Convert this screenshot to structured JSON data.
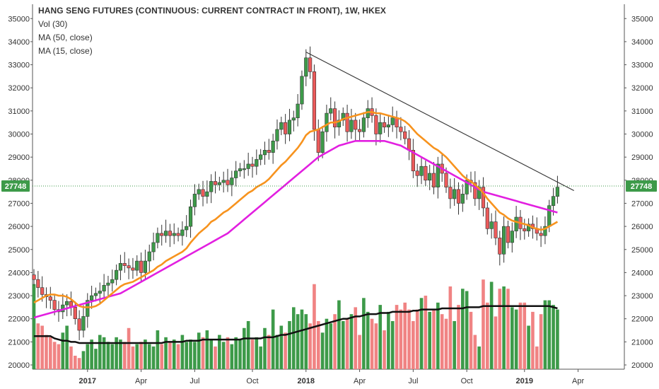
{
  "header": {
    "title": "HANG SENG FUTURES (CONTINUOUS: CURRENT CONTRACT IN FRONT), 1W, HKEX",
    "indicators": [
      "Vol (30)",
      "MA (50, close)",
      "MA (15, close)"
    ]
  },
  "colors": {
    "up": "#3d9a49",
    "down": "#ec5a5a",
    "up_volume": "#3d9a49",
    "down_volume": "#f08383",
    "ma15": "#f7931e",
    "ma50": "#e21fe0",
    "vol_ma": "#111111",
    "trendline": "#333333",
    "price_marker": "#3d9a49",
    "axis_text": "#333333"
  },
  "chart_data": {
    "type": "candlestick",
    "interval": "1W",
    "y_ticks": [
      20000,
      21000,
      22000,
      23000,
      24000,
      25000,
      26000,
      27000,
      28000,
      29000,
      30000,
      31000,
      32000,
      33000,
      34000,
      35000
    ],
    "x_ticks": [
      "2017",
      "Apr",
      "Jul",
      "Oct",
      "2018",
      "Apr",
      "Jul",
      "Oct",
      "2019",
      "Apr"
    ],
    "ylim": [
      19700,
      35400
    ],
    "last_price": "27748",
    "grid": false,
    "closes": [
      23700,
      23350,
      23050,
      22950,
      22800,
      22400,
      22300,
      22600,
      22750,
      22500,
      22000,
      21500,
      22100,
      22800,
      23000,
      23100,
      23200,
      23450,
      23550,
      23700,
      24100,
      24400,
      24300,
      24200,
      24100,
      24500,
      24000,
      24500,
      24900,
      25300,
      25700,
      25600,
      25800,
      25600,
      25700,
      25600,
      25850,
      26000,
      26850,
      27400,
      27600,
      27300,
      27500,
      27950,
      27800,
      27900,
      28000,
      27800,
      28100,
      28400,
      28500,
      28500,
      28700,
      28600,
      28900,
      29100,
      29300,
      29200,
      29700,
      30200,
      30500,
      30000,
      30600,
      30700,
      31300,
      32500,
      33300,
      32700,
      30200,
      29200,
      30100,
      30900,
      31100,
      30300,
      30600,
      30900,
      30100,
      30600,
      30200,
      30100,
      30700,
      31100,
      30800,
      30000,
      30500,
      30300,
      30400,
      30700,
      30300,
      30100,
      29800,
      29300,
      28400,
      28200,
      28600,
      28000,
      28300,
      27700,
      28700,
      28300,
      27700,
      27200,
      27600,
      27000,
      27400,
      28000,
      27900,
      27200,
      27700,
      26800,
      25900,
      26200,
      25500,
      24800,
      26000,
      25300,
      25800,
      26400,
      25900,
      25800,
      26100,
      25900,
      25700,
      25600,
      26000,
      26900,
      27300,
      27700
    ],
    "ma15": [
      22700,
      22800,
      22900,
      23000,
      23050,
      23050,
      23000,
      23000,
      22950,
      22850,
      22700,
      22550,
      22500,
      22500,
      22500,
      22550,
      22650,
      22800,
      22950,
      23100,
      23250,
      23400,
      23500,
      23550,
      23600,
      23700,
      23800,
      23900,
      24000,
      24100,
      24250,
      24350,
      24500,
      24600,
      24700,
      24800,
      24900,
      25050,
      25300,
      25500,
      25700,
      25850,
      26000,
      26200,
      26300,
      26450,
      26600,
      26700,
      26850,
      27000,
      27150,
      27300,
      27450,
      27550,
      27700,
      27800,
      27900,
      28050,
      28250,
      28450,
      28650,
      28800,
      29000,
      29200,
      29400,
      29650,
      29950,
      30100,
      30150,
      30200,
      30300,
      30400,
      30500,
      30500,
      30550,
      30650,
      30700,
      30750,
      30800,
      30850,
      30900,
      30950,
      30950,
      30900,
      30900,
      30850,
      30800,
      30750,
      30700,
      30650,
      30550,
      30400,
      30200,
      30000,
      29850,
      29700,
      29550,
      29400,
      29300,
      29150,
      29000,
      28800,
      28600,
      28400,
      28200,
      28050,
      27950,
      27800,
      27650,
      27450,
      27200,
      27000,
      26800,
      26600,
      26500,
      26350,
      26250,
      26200,
      26150,
      26100,
      26050,
      25950,
      25900,
      25850,
      25900,
      26000,
      26100,
      26200
    ],
    "ma50": [
      null,
      null,
      null,
      null,
      null,
      null,
      null,
      null,
      null,
      null,
      null,
      null,
      null,
      null,
      null,
      null,
      null,
      null,
      null,
      null,
      null,
      null,
      null,
      null,
      null,
      null,
      null,
      null,
      null,
      null,
      null,
      null,
      null,
      null,
      null,
      null,
      null,
      null,
      null,
      null,
      null,
      null,
      null,
      null,
      null,
      null,
      null,
      null,
      null,
      null,
      null,
      null,
      null,
      null,
      null,
      null,
      null,
      null,
      null,
      null,
      null,
      null,
      null,
      null,
      null,
      null,
      null,
      null,
      null,
      null,
      null,
      null,
      null,
      null,
      null,
      null,
      null,
      null,
      null,
      null,
      null,
      null,
      null,
      null,
      null,
      null,
      null,
      null,
      null,
      null,
      null,
      null,
      null,
      null,
      null,
      null,
      null,
      null,
      null,
      null,
      null,
      null,
      null,
      null,
      null,
      null,
      null,
      null,
      null,
      null,
      null,
      null,
      null,
      null,
      null,
      null,
      null,
      null,
      null,
      null,
      null,
      null,
      null,
      null,
      null,
      null,
      null,
      null,
      null
    ],
    "ma50_values": [
      22050,
      22100,
      22150,
      22200,
      22250,
      22300,
      22350,
      22400,
      22450,
      22500,
      22550,
      22600,
      22650,
      22700,
      22750,
      22800,
      22850,
      22900,
      22950,
      23000,
      23050,
      23100,
      23200,
      23300,
      23400,
      23500,
      23600,
      23700,
      23800,
      23900,
      24000,
      24100,
      24200,
      24300,
      24400,
      24500,
      24600,
      24700,
      24800,
      24900,
      25000,
      25100,
      25200,
      25300,
      25400,
      25500,
      25600,
      25700,
      25850,
      26000,
      26150,
      26300,
      26450,
      26600,
      26750,
      26900,
      27050,
      27200,
      27350,
      27500,
      27650,
      27800,
      27950,
      28100,
      28250,
      28400,
      28550,
      28700,
      28850,
      29000,
      29100,
      29200,
      29300,
      29400,
      29500,
      29550,
      29600,
      29650,
      29700,
      29700,
      29700,
      29700,
      29700,
      29700,
      29700,
      29700,
      29650,
      29600,
      29550,
      29500,
      29400,
      29300,
      29200,
      29100,
      29000,
      28900,
      28800,
      28700,
      28600,
      28500,
      28400,
      28300,
      28200,
      28100,
      28000,
      27900,
      27800,
      27700,
      27600,
      27500,
      27450,
      27400,
      27350,
      27300,
      27250,
      27200,
      27150,
      27100,
      27050,
      27000,
      26950,
      26900,
      26850,
      26800,
      26750,
      26700,
      26650,
      26600
    ],
    "volume": [
      23500,
      21800,
      21700,
      21300,
      21200,
      21000,
      20900,
      21400,
      21700,
      20800,
      20400,
      20300,
      20600,
      20900,
      21100,
      20700,
      21300,
      21200,
      21000,
      20900,
      21200,
      21100,
      21000,
      21600,
      20800,
      20900,
      21000,
      21100,
      20900,
      20800,
      21500,
      20900,
      21200,
      21000,
      21100,
      20900,
      21300,
      21000,
      21100,
      21000,
      21400,
      21200,
      21500,
      21100,
      20800,
      21300,
      21000,
      21200,
      20900,
      21200,
      21100,
      21600,
      21900,
      21100,
      21200,
      20800,
      21600,
      21300,
      22400,
      21300,
      21700,
      21400,
      21900,
      22500,
      22200,
      22400,
      22200,
      21800,
      23500,
      21900,
      21400,
      22000,
      21800,
      22200,
      22800,
      21900,
      22000,
      22200,
      22500,
      21300,
      22900,
      22300,
      22000,
      21800,
      22600,
      21500,
      22300,
      21900,
      22600,
      22400,
      22700,
      22400,
      21900,
      22400,
      22900,
      23000,
      22300,
      22400,
      22700,
      22200,
      22000,
      23400,
      21900,
      22600,
      23300,
      23200,
      22300,
      21300,
      20800,
      23700,
      22700,
      23600,
      22100,
      23300,
      23400,
      23300,
      22500,
      22400,
      22700,
      22700,
      21700,
      22300,
      20800,
      22200,
      22800,
      22800,
      22600,
      22400
    ],
    "vol_ma": [
      21250,
      21250,
      21250,
      21250,
      21250,
      21150,
      21100,
      21050,
      21050,
      21000,
      21000,
      20950,
      20950,
      20950,
      20950,
      20950,
      20950,
      20950,
      20950,
      20950,
      20950,
      20950,
      20950,
      20950,
      20950,
      20950,
      20950,
      20950,
      20950,
      20950,
      20950,
      20950,
      21000,
      21000,
      21000,
      21000,
      21000,
      21050,
      21050,
      21050,
      21050,
      21100,
      21100,
      21100,
      21100,
      21100,
      21100,
      21100,
      21100,
      21100,
      21100,
      21150,
      21150,
      21150,
      21150,
      21150,
      21200,
      21200,
      21200,
      21250,
      21300,
      21300,
      21350,
      21400,
      21450,
      21500,
      21550,
      21600,
      21650,
      21700,
      21750,
      21800,
      21850,
      21900,
      21950,
      22000,
      22000,
      22050,
      22100,
      22100,
      22150,
      22200,
      22200,
      22200,
      22250,
      22250,
      22250,
      22300,
      22300,
      22300,
      22300,
      22300,
      22350,
      22350,
      22400,
      22400,
      22400,
      22400,
      22400,
      22450,
      22450,
      22450,
      22450,
      22450,
      22450,
      22500,
      22500,
      22500,
      22500,
      22550,
      22550,
      22550,
      22550,
      22550,
      22550,
      22550,
      22550,
      22550,
      22550,
      22550,
      22550,
      22550,
      22550,
      22550,
      22550,
      22550,
      22500,
      22450
    ],
    "trendline": {
      "from": {
        "bar": 66,
        "value": 33550
      },
      "to": {
        "bar": 131,
        "value": 27550
      }
    }
  }
}
